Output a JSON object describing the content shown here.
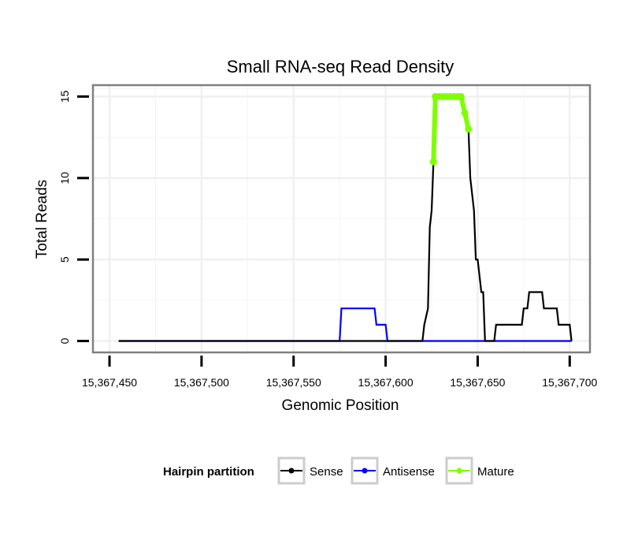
{
  "chart_data": {
    "type": "line",
    "title": "Small RNA-seq Read Density",
    "xlabel": "Genomic Position",
    "ylabel": "Total Reads",
    "xlim": [
      15367441,
      15367711
    ],
    "ylim": [
      -0.7,
      15.7
    ],
    "x_ticks": [
      15367450,
      15367500,
      15367550,
      15367600,
      15367650,
      15367700
    ],
    "x_tick_labels": [
      "15,367,450",
      "15,367,500",
      "15,367,550",
      "15,367,600",
      "15,367,650",
      "15,367,700"
    ],
    "y_ticks": [
      0,
      5,
      10,
      15
    ],
    "y_tick_labels": [
      "0",
      "5",
      "10",
      "15"
    ],
    "grid": true,
    "legend": {
      "position": "bottom",
      "title": "Hairpin partition",
      "entries": [
        "Sense",
        "Antisense",
        "Mature"
      ]
    },
    "series": [
      {
        "name": "Sense",
        "color": "#000000",
        "x": [
          15367455,
          15367620,
          15367621,
          15367623,
          15367624,
          15367625,
          15367626,
          15367627,
          15367628,
          15367629,
          15367642,
          15367643,
          15367644,
          15367645,
          15367646,
          15367647,
          15367648,
          15367649,
          15367650,
          15367651,
          15367652,
          15367653,
          15367654,
          15367655,
          15367659,
          15367660,
          15367674,
          15367675,
          15367677,
          15367678,
          15367685,
          15367686,
          15367693,
          15367694,
          15367700,
          15367701
        ],
        "values": [
          0,
          0,
          1,
          2,
          7,
          8,
          11,
          15,
          15,
          15,
          15,
          14,
          14,
          13,
          10,
          9,
          8,
          5,
          5,
          4,
          3,
          3,
          0,
          0,
          0,
          1,
          1,
          2,
          2,
          3,
          3,
          2,
          2,
          1,
          1,
          0
        ]
      },
      {
        "name": "Antisense",
        "color": "#0000ff",
        "x": [
          15367455,
          15367575,
          15367576,
          15367594,
          15367595,
          15367600,
          15367601,
          15367701
        ],
        "values": [
          0,
          0,
          2,
          2,
          1,
          1,
          0,
          0
        ]
      },
      {
        "name": "Mature",
        "color": "#7fff00",
        "x": [
          15367626,
          15367627,
          15367629,
          15367631,
          15367633,
          15367635,
          15367637,
          15367639,
          15367641,
          15367643,
          15367645
        ],
        "values": [
          11,
          15,
          15,
          15,
          15,
          15,
          15,
          15,
          15,
          14,
          13
        ]
      }
    ]
  }
}
